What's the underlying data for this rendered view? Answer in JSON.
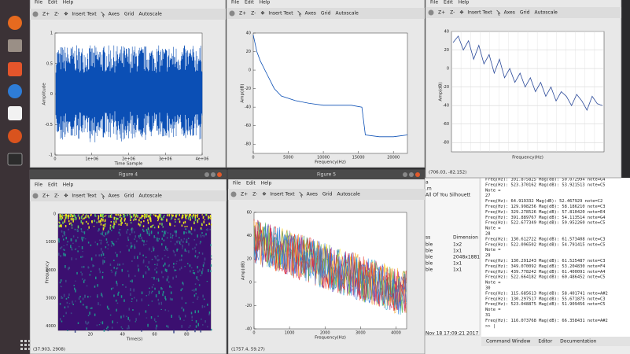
{
  "windows": [
    {
      "menu": [
        "File",
        "Edit",
        "Help"
      ],
      "toolbar": [
        "Z+",
        "Z-",
        "Insert Text",
        "Axes",
        "Grid",
        "Autoscale"
      ],
      "axes": {
        "xlabel": "Time Sample",
        "ylabel": "Amplitude",
        "xlim": [
          0,
          4000000
        ],
        "ylim": [
          -1,
          1
        ],
        "xticks": [
          0,
          {
            "value": 1000000,
            "label": "1e+06"
          },
          {
            "value": 2000000,
            "label": "2e+06"
          },
          {
            "value": 3000000,
            "label": "3e+06"
          },
          {
            "value": 4000000,
            "label": "4e+06"
          }
        ],
        "yticks": [
          -1,
          -0.5,
          0,
          0.5,
          1
        ]
      }
    },
    {
      "menu": [
        "File",
        "Edit",
        "Help"
      ],
      "toolbar": [
        "Z+",
        "Z-",
        "Insert Text",
        "Axes",
        "Grid",
        "Autoscale"
      ],
      "axes": {
        "xlabel": "Frequency(Hz)",
        "ylabel": "Amp(dB)",
        "xlim": [
          0,
          22000
        ],
        "ylim": [
          -90,
          40
        ],
        "xticks": [
          0,
          5000,
          10000,
          15000,
          20000
        ],
        "yticks": [
          -80,
          -60,
          -40,
          -20,
          0,
          20,
          40
        ],
        "curve": {
          "x": [
            0,
            500,
            1000,
            2000,
            3000,
            4000,
            6000,
            8000,
            10000,
            12000,
            14000,
            15500,
            16000,
            18000,
            20000,
            22000
          ],
          "values": [
            38,
            20,
            10,
            -5,
            -20,
            -28,
            -33,
            -36,
            -38,
            -38,
            -38,
            -40,
            -70,
            -72,
            -72,
            -70
          ]
        }
      }
    },
    {
      "menu": [
        "File",
        "Edit",
        "Help"
      ],
      "toolbar": [
        "Z+",
        "Z-",
        "Insert Text",
        "Axes",
        "Grid",
        "Autoscale"
      ],
      "axes": {
        "xlabel": "Frequency(Hz)",
        "ylabel": "Amp(dB)",
        "ylim": [
          -90,
          40
        ],
        "grid": true,
        "yticks": [
          -80,
          -60,
          -40,
          -20,
          0,
          20,
          40
        ],
        "curve": {
          "values": [
            28,
            35,
            20,
            30,
            10,
            25,
            5,
            15,
            -5,
            10,
            -10,
            0,
            -15,
            -5,
            -20,
            -10,
            -25,
            -15,
            -30,
            -20,
            -35,
            -25,
            -30,
            -40,
            -28,
            -35,
            -45,
            -30,
            -38,
            -40
          ]
        }
      },
      "status": "(706.03, -82.152)"
    },
    {
      "title": "Figure 4",
      "menu": [
        "File",
        "Edit",
        "Help"
      ],
      "toolbar": [
        "Z+",
        "Z-",
        "Insert Text",
        "Axes",
        "Grid",
        "Autoscale"
      ],
      "axes": {
        "xlabel": "Time(s)",
        "ylabel": "Frequency",
        "xlim": [
          0,
          95
        ],
        "ylim": [
          4150,
          0
        ],
        "xticks": [
          20,
          40,
          60,
          80
        ],
        "yticks": [
          0,
          1000,
          2000,
          3000,
          4000
        ]
      },
      "status": "(37.903, 2908)"
    },
    {
      "title": "Figure 5",
      "menu": [
        "File",
        "Edit",
        "Help"
      ],
      "toolbar": [
        "Z+",
        "Z-",
        "Insert Text",
        "Axes",
        "Grid",
        "Autoscale"
      ],
      "axes": {
        "xlabel": "Frequency(Hz)",
        "ylabel": "Amp(dB)",
        "xlim": [
          0,
          4300
        ],
        "ylim": [
          -40,
          60
        ],
        "xticks": [
          0,
          1000,
          2000,
          3000,
          4000
        ],
        "yticks": [
          -40,
          -20,
          0,
          20,
          40,
          60
        ]
      },
      "status": "(1757.4, 59.27)"
    }
  ],
  "workspace": {
    "items": [
      "a",
      ".m",
      "All Of You Silhouett"
    ],
    "header": [
      "ss",
      "Dimension"
    ],
    "rows": [
      [
        "ble",
        "1x2"
      ],
      [
        "ble",
        "1x1"
      ],
      [
        "ble",
        "2048x1881"
      ],
      [
        "ble",
        "1x1"
      ],
      [
        "ble",
        "1x1"
      ]
    ],
    "timestamp": "Nov 18 17:09:21 2017"
  },
  "command_window": {
    "lines": [
      "Freq(Hz): 391.875825 Mag(dB): 50.072994 note=G4",
      "Freq(Hz): 523.370162 Mag(dB): 53.921513 note=C5",
      "Note =",
      "  27",
      "Freq(Hz): 64.919332 Mag(dB): 52.467929 note=C2",
      "Freq(Hz): 129.998256 Mag(dB): 58.186210 note=C3",
      "Freq(Hz): 329.278526 Mag(dB): 57.810420 note=E4",
      "Freq(Hz): 391.889767 Mag(dB): 54.113514 note=G4",
      "Freq(Hz): 522.677349 Mag(dB): 59.952260 note=C5",
      "Note =",
      "  28",
      "Freq(Hz): 130.612722 Mag(dB): 61.573408 note=C3",
      "Freq(Hz): 522.096502 Mag(dB): 54.791415 note=C5",
      "Note =",
      "  29",
      "Freq(Hz): 130.291243 Mag(dB): 61.525487 note=C3",
      "Freq(Hz): 349.070092 Mag(dB): 53.204830 note=F4",
      "Freq(Hz): 439.778242 Mag(dB): 61.400091 note=A4",
      "Freq(Hz): 522.664182 Mag(dB): 60.486452 note=C5",
      "Note =",
      "  30",
      "Freq(Hz): 115.685613 Mag(dB): 58.401741 note=A#2",
      "Freq(Hz): 130.297517 Mag(dB): 55.671875 note=C3",
      "Freq(Hz): 523.048875 Mag(dB): 51.909456 note=C5",
      "Note =",
      "  31",
      "Freq(Hz): 116.073768 Mag(dB): 66.358431 note=A#2",
      ">> |"
    ]
  },
  "tabs": [
    "Command Window",
    "Editor",
    "Documentation"
  ]
}
